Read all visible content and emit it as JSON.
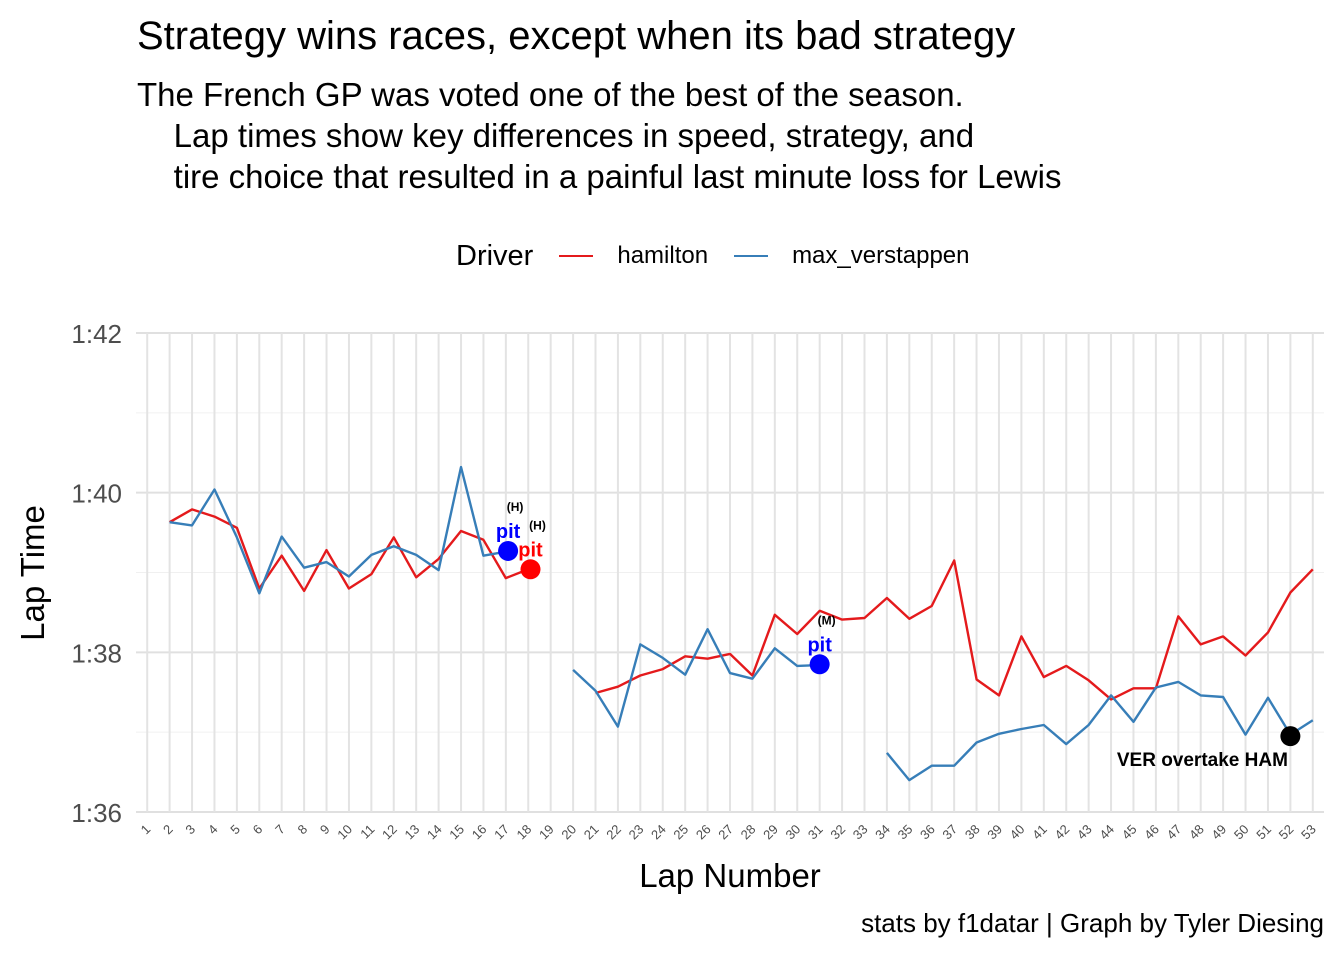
{
  "title": "Strategy wins races, except when its bad strategy",
  "subtitle": "The French GP was voted one of the best of the season.\n    Lap times show key differences in speed, strategy, and\n    tire choice that resulted in a painful last minute loss for Lewis",
  "caption": "stats by f1datar | Graph by Tyler Diesing",
  "legend": {
    "title": "Driver",
    "items": [
      {
        "label": "hamilton",
        "color": "#e41a1c"
      },
      {
        "label": "max_verstappen",
        "color": "#377eb8"
      }
    ]
  },
  "chart_data": {
    "type": "line",
    "title": "Strategy wins races, except when its bad strategy",
    "xlabel": "Lap Number",
    "ylabel": "Lap Time",
    "x": [
      1,
      2,
      3,
      4,
      5,
      6,
      7,
      8,
      9,
      10,
      11,
      12,
      13,
      14,
      15,
      16,
      17,
      18,
      19,
      20,
      21,
      22,
      23,
      24,
      25,
      26,
      27,
      28,
      29,
      30,
      31,
      32,
      33,
      34,
      35,
      36,
      37,
      38,
      39,
      40,
      41,
      42,
      43,
      44,
      45,
      46,
      47,
      48,
      49,
      50,
      51,
      52,
      53
    ],
    "x_tick_labels": [
      "1",
      "2",
      "3",
      "4",
      "5",
      "6",
      "7",
      "8",
      "9",
      "10",
      "11",
      "12",
      "13",
      "14",
      "15",
      "16",
      "17",
      "18",
      "19",
      "20",
      "21",
      "22",
      "23",
      "24",
      "25",
      "26",
      "27",
      "28",
      "29",
      "30",
      "31",
      "32",
      "33",
      "34",
      "35",
      "36",
      "37",
      "38",
      "39",
      "40",
      "41",
      "42",
      "43",
      "44",
      "45",
      "46",
      "47",
      "48",
      "49",
      "50",
      "51",
      "52",
      "53"
    ],
    "ylim_seconds": [
      96,
      102
    ],
    "y_ticks": [
      {
        "value": 96,
        "label": "1:36"
      },
      {
        "value": 98,
        "label": "1:38"
      },
      {
        "value": 100,
        "label": "1:40"
      },
      {
        "value": 102,
        "label": "1:42"
      }
    ],
    "grid": true,
    "legend_position": "top",
    "series": [
      {
        "name": "hamilton",
        "color": "#e41a1c",
        "segments": [
          {
            "x": [
              2,
              3,
              4,
              5,
              6,
              7,
              8,
              9,
              10,
              11,
              12,
              13,
              14,
              15,
              16,
              17,
              18
            ],
            "y": [
              99.63,
              99.79,
              99.7,
              99.56,
              98.8,
              99.21,
              98.77,
              99.28,
              98.8,
              98.98,
              99.44,
              98.94,
              99.17,
              99.52,
              99.41,
              98.93,
              99.04
            ]
          },
          {
            "x": [
              21,
              22,
              23,
              24,
              25,
              26,
              27,
              28,
              29,
              30,
              31,
              32,
              33,
              34,
              35,
              36,
              37,
              38,
              39,
              40,
              41,
              42,
              43,
              44,
              45,
              46,
              47,
              48,
              49,
              50,
              51,
              52,
              53
            ],
            "y": [
              97.49,
              97.57,
              97.71,
              97.79,
              97.95,
              97.92,
              97.98,
              97.71,
              98.47,
              98.23,
              98.52,
              98.41,
              98.43,
              98.68,
              98.42,
              98.58,
              99.15,
              97.66,
              97.46,
              98.2,
              97.69,
              97.83,
              97.65,
              97.41,
              97.55,
              97.55,
              98.45,
              98.1,
              98.2,
              97.96,
              98.25,
              98.75,
              99.04
            ]
          }
        ]
      },
      {
        "name": "max_verstappen",
        "color": "#377eb8",
        "segments": [
          {
            "x": [
              2,
              3,
              4,
              5,
              6,
              7,
              8,
              9,
              10,
              11,
              12,
              13,
              14,
              15,
              16,
              17
            ],
            "y": [
              99.63,
              99.59,
              100.04,
              99.44,
              98.74,
              99.45,
              99.06,
              99.13,
              98.95,
              99.22,
              99.33,
              99.22,
              99.03,
              100.32,
              99.21,
              99.26
            ]
          },
          {
            "x": [
              20,
              21,
              22,
              23,
              24,
              25,
              26,
              27,
              28,
              29,
              30,
              31
            ],
            "y": [
              97.78,
              97.52,
              97.07,
              98.1,
              97.93,
              97.72,
              98.29,
              97.74,
              97.67,
              98.05,
              97.83,
              97.84
            ]
          },
          {
            "x": [
              34,
              35,
              36,
              37,
              38,
              39,
              40,
              41,
              42,
              43,
              44,
              45,
              46,
              47,
              48,
              49,
              50,
              51,
              52,
              53
            ],
            "y": [
              96.74,
              96.4,
              96.58,
              96.58,
              96.87,
              96.98,
              97.04,
              97.09,
              96.85,
              97.09,
              97.46,
              97.13,
              97.56,
              97.63,
              97.46,
              97.44,
              96.97,
              97.43,
              96.97,
              97.15
            ]
          }
        ]
      }
    ],
    "annotations": [
      {
        "kind": "pit",
        "driver": "max_verstappen",
        "x": 17.1,
        "y": 99.27,
        "label": "pit",
        "tire": "(H)",
        "color": "#0000ff"
      },
      {
        "kind": "pit",
        "driver": "hamilton",
        "x": 18.1,
        "y": 99.04,
        "label": "pit",
        "tire": "(H)",
        "color": "#ff0000"
      },
      {
        "kind": "pit",
        "driver": "max_verstappen",
        "x": 31.0,
        "y": 97.85,
        "label": "pit",
        "tire": "(M)",
        "color": "#0000ff"
      },
      {
        "kind": "overtake",
        "x": 52.0,
        "y": 96.95,
        "label": "VER overtake HAM",
        "color": "#000000"
      }
    ]
  }
}
